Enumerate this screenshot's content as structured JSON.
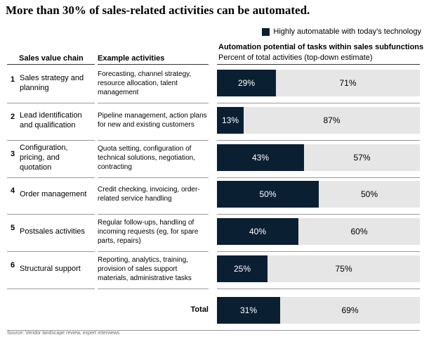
{
  "title": "More than 30% of sales-related activities can be automated.",
  "legend": {
    "label": "Highly automatable with today's technology",
    "color": "#0b1f33"
  },
  "headers": {
    "chain": "Sales value chain",
    "activities": "Example activities",
    "automation": "Automation potential of tasks within sales subfunctions",
    "automation_sub": "Percent of total activities (top-down estimate)"
  },
  "rows": [
    {
      "num": "1",
      "chain": "Sales strategy and planning",
      "activities": "Forecasting, channel strategy, resource allocation, talent management",
      "auto": 29,
      "rest": 71,
      "auto_label": "29%",
      "rest_label": "71%"
    },
    {
      "num": "2",
      "chain": "Lead identification and qualification",
      "activities": "Pipeline management, action plans for new and existing customers",
      "auto": 13,
      "rest": 87,
      "auto_label": "13%",
      "rest_label": "87%"
    },
    {
      "num": "3",
      "chain": "Configuration, pricing, and quotation",
      "activities": "Quota setting, configuration of technical solutions, negotiation, contracting",
      "auto": 43,
      "rest": 57,
      "auto_label": "43%",
      "rest_label": "57%"
    },
    {
      "num": "4",
      "chain": "Order management",
      "activities": "Credit checking, invoicing, order-related service handling",
      "auto": 50,
      "rest": 50,
      "auto_label": "50%",
      "rest_label": "50%"
    },
    {
      "num": "5",
      "chain": "Postsales activities",
      "activities": "Regular follow-ups, handling of incoming requests (eg, for spare parts, repairs)",
      "auto": 40,
      "rest": 60,
      "auto_label": "40%",
      "rest_label": "60%"
    },
    {
      "num": "6",
      "chain": "Structural support",
      "activities": "Reporting, analytics, training, provision of sales support materials, administrative tasks",
      "auto": 25,
      "rest": 75,
      "auto_label": "25%",
      "rest_label": "75%"
    }
  ],
  "total": {
    "label": "Total",
    "auto": 31,
    "rest": 69,
    "auto_label": "31%",
    "rest_label": "69%"
  },
  "source": "Source: Vendor landscape review, expert interviews",
  "colors": {
    "automatable": "#0b1f33",
    "remaining": "#e6e6e6"
  },
  "chart_data": {
    "type": "bar",
    "orientation": "horizontal",
    "stacked": true,
    "categories": [
      "Sales strategy and planning",
      "Lead identification and qualification",
      "Configuration, pricing, and quotation",
      "Order management",
      "Postsales activities",
      "Structural support",
      "Total"
    ],
    "series": [
      {
        "name": "Highly automatable with today's technology",
        "values": [
          29,
          13,
          43,
          50,
          40,
          25,
          31
        ]
      },
      {
        "values": [
          71,
          87,
          57,
          50,
          60,
          75,
          69
        ]
      }
    ],
    "title": "More than 30% of sales-related activities can be automated.",
    "xlim": [
      0,
      100
    ],
    "legend": "top-right"
  }
}
